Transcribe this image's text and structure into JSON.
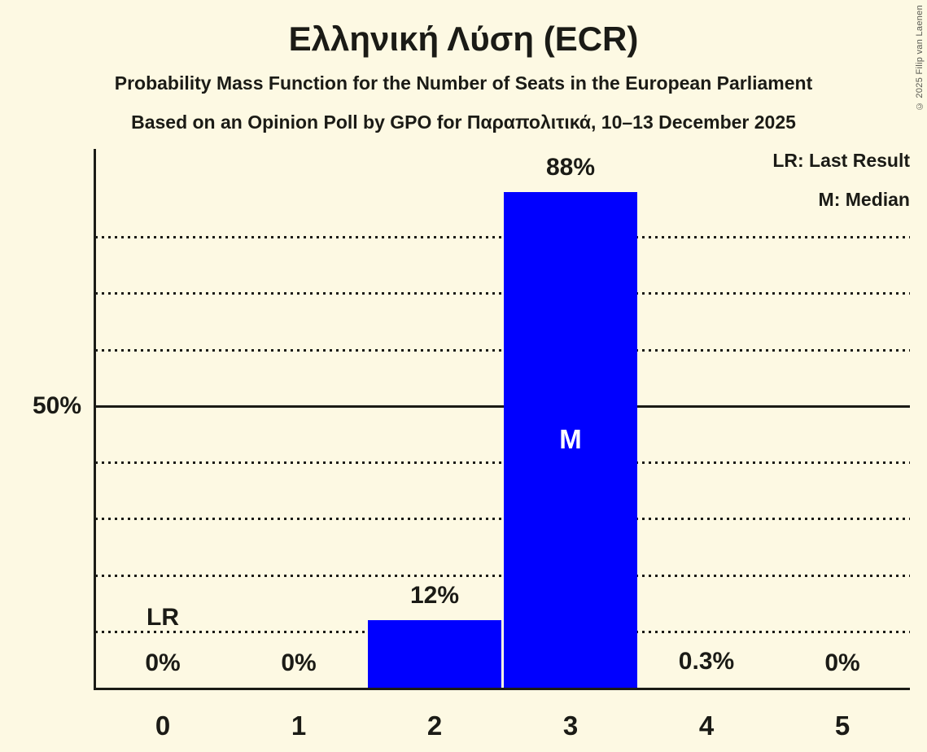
{
  "header": {
    "title": "Ελληνική Λύση (ECR)",
    "subtitle1": "Probability Mass Function for the Number of Seats in the European Parliament",
    "subtitle2": "Based on an Opinion Poll by GPO for Παραπολιτικά, 10–13 December 2025"
  },
  "legend": {
    "lr": "LR: Last Result",
    "m": "M: Median"
  },
  "copyright": "© 2025 Filip van Laenen",
  "colors": {
    "background": "#fdf9e3",
    "bar": "#0000ff",
    "text": "#1b1b16",
    "grid": "#1b1b16",
    "axis": "#1b1b16",
    "bar_label": "#ffffff",
    "copyright_text": "#5a5a52"
  },
  "chart_data": {
    "type": "bar",
    "title": "Ελληνική Λύση (ECR)",
    "xlabel": "",
    "ylabel": "",
    "categories": [
      "0",
      "1",
      "2",
      "3",
      "4",
      "5"
    ],
    "values": [
      0,
      0,
      12,
      88,
      0.3,
      0
    ],
    "value_labels": [
      "0%",
      "0%",
      "12%",
      "88%",
      "0.3%",
      "0%"
    ],
    "ylim": [
      0,
      95.6
    ],
    "y_tick": {
      "value": 50,
      "label": "50%"
    },
    "gridlines_dotted": [
      10,
      20,
      30,
      40,
      60,
      70,
      80
    ],
    "gridline_solid": 50,
    "grid": true,
    "legend_position": "top-right",
    "annotations": {
      "lr_label": "LR",
      "last_result_category": "0",
      "m_label": "M",
      "median_category": "3"
    }
  }
}
